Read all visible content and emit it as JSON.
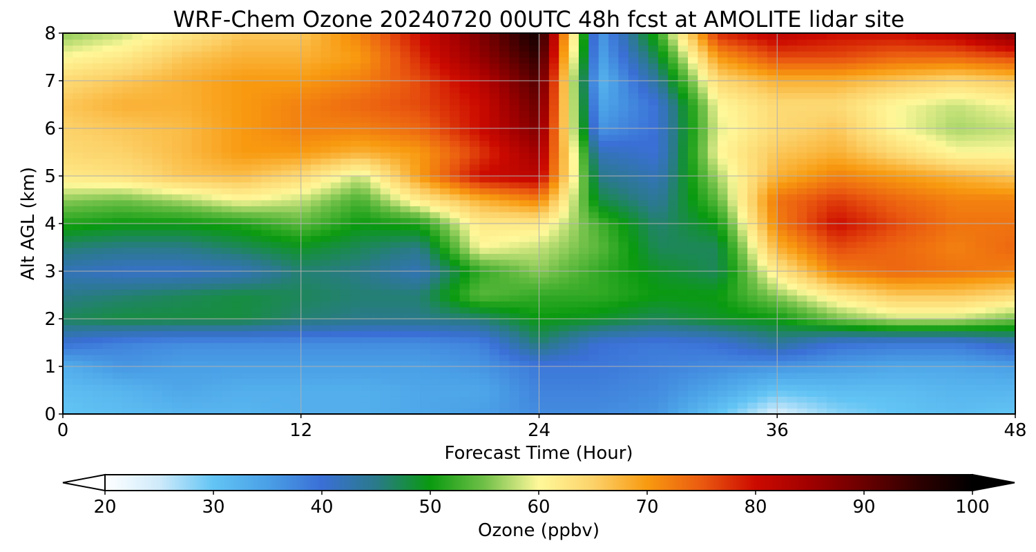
{
  "chart_data": {
    "type": "heatmap",
    "title": "WRF-Chem Ozone  20240720 00UTC 48h fcst at AMOLITE lidar site",
    "xlabel": "Forecast Time (Hour)",
    "ylabel": "Alt AGL (km)",
    "xlim": [
      0,
      48
    ],
    "ylim": [
      0,
      8
    ],
    "xticks": [
      0,
      12,
      24,
      36,
      48
    ],
    "yticks": [
      0,
      1,
      2,
      3,
      4,
      5,
      6,
      7,
      8
    ],
    "grid": true,
    "x": [
      0,
      3,
      6,
      9,
      12,
      15,
      18,
      21,
      24,
      27,
      30,
      33,
      36,
      39,
      42,
      45,
      48
    ],
    "y": [
      0,
      0.5,
      1,
      1.5,
      2,
      2.5,
      3,
      3.5,
      4,
      4.5,
      5,
      5.5,
      6,
      6.5,
      7,
      7.5,
      8
    ],
    "z": [
      [
        30,
        31,
        32,
        32,
        33,
        33,
        34,
        35,
        37,
        37,
        36,
        30,
        24,
        28,
        30,
        31,
        30
      ],
      [
        31,
        32,
        34,
        33,
        33,
        33,
        34,
        34,
        38,
        38,
        37,
        34,
        30,
        31,
        31,
        32,
        32
      ],
      [
        33,
        36,
        35,
        35,
        35,
        35,
        35,
        36,
        39,
        39,
        38,
        37,
        36,
        35,
        34,
        34,
        35
      ],
      [
        40,
        38,
        37,
        37,
        37,
        37,
        37,
        38,
        46,
        40,
        39,
        40,
        44,
        40,
        39,
        39,
        42
      ],
      [
        47,
        48,
        48,
        48,
        46,
        45,
        45,
        46,
        50,
        49,
        47,
        49,
        50,
        55,
        58,
        58,
        55
      ],
      [
        45,
        46,
        47,
        48,
        47,
        46,
        46,
        54,
        52,
        52,
        50,
        50,
        56,
        62,
        66,
        66,
        64
      ],
      [
        42,
        41,
        41,
        42,
        46,
        45,
        42,
        52,
        56,
        52,
        49,
        47,
        62,
        72,
        74,
        73,
        72
      ],
      [
        46,
        45,
        45,
        47,
        49,
        47,
        45,
        60,
        58,
        54,
        47,
        47,
        68,
        76,
        74,
        72,
        74
      ],
      [
        51,
        50,
        50,
        51,
        54,
        50,
        51,
        62,
        62,
        53,
        46,
        50,
        72,
        80,
        76,
        73,
        73
      ],
      [
        56,
        55,
        57,
        60,
        58,
        53,
        62,
        68,
        72,
        48,
        44,
        54,
        73,
        77,
        74,
        72,
        72
      ],
      [
        62,
        63,
        66,
        67,
        64,
        58,
        70,
        80,
        82,
        45,
        42,
        57,
        68,
        72,
        70,
        68,
        66
      ],
      [
        64,
        65,
        67,
        70,
        70,
        68,
        70,
        77,
        85,
        42,
        40,
        60,
        66,
        68,
        64,
        60,
        60
      ],
      [
        65,
        66,
        67,
        70,
        72,
        72,
        74,
        80,
        88,
        36,
        40,
        59,
        64,
        66,
        60,
        57,
        58
      ],
      [
        66,
        68,
        68,
        70,
        72,
        74,
        76,
        80,
        90,
        34,
        40,
        60,
        64,
        64,
        60,
        58,
        60
      ],
      [
        64,
        66,
        68,
        70,
        70,
        72,
        76,
        82,
        92,
        32,
        44,
        64,
        68,
        68,
        66,
        64,
        66
      ],
      [
        60,
        62,
        66,
        68,
        68,
        70,
        78,
        86,
        95,
        34,
        48,
        70,
        76,
        76,
        74,
        74,
        76
      ],
      [
        56,
        58,
        62,
        66,
        66,
        72,
        80,
        88,
        98,
        35,
        52,
        78,
        82,
        80,
        80,
        82,
        88
      ]
    ],
    "colorbar": {
      "label": "Ozone  (ppbv)",
      "range": [
        20,
        100
      ],
      "ticks": [
        20,
        30,
        40,
        50,
        60,
        70,
        80,
        90,
        100
      ],
      "extend": "both",
      "stops": [
        [
          20,
          "#ffffff"
        ],
        [
          25,
          "#cfeafa"
        ],
        [
          30,
          "#62c4f4"
        ],
        [
          35,
          "#4aa0e6"
        ],
        [
          40,
          "#3a6fd6"
        ],
        [
          45,
          "#2a7a8a"
        ],
        [
          50,
          "#0a9a10"
        ],
        [
          55,
          "#70c048"
        ],
        [
          60,
          "#fff89a"
        ],
        [
          65,
          "#fcd26a"
        ],
        [
          70,
          "#f89a10"
        ],
        [
          75,
          "#ea5a10"
        ],
        [
          80,
          "#cc0a00"
        ],
        [
          85,
          "#a00000"
        ],
        [
          90,
          "#6a0000"
        ],
        [
          95,
          "#2e0000"
        ],
        [
          100,
          "#000000"
        ]
      ]
    }
  }
}
